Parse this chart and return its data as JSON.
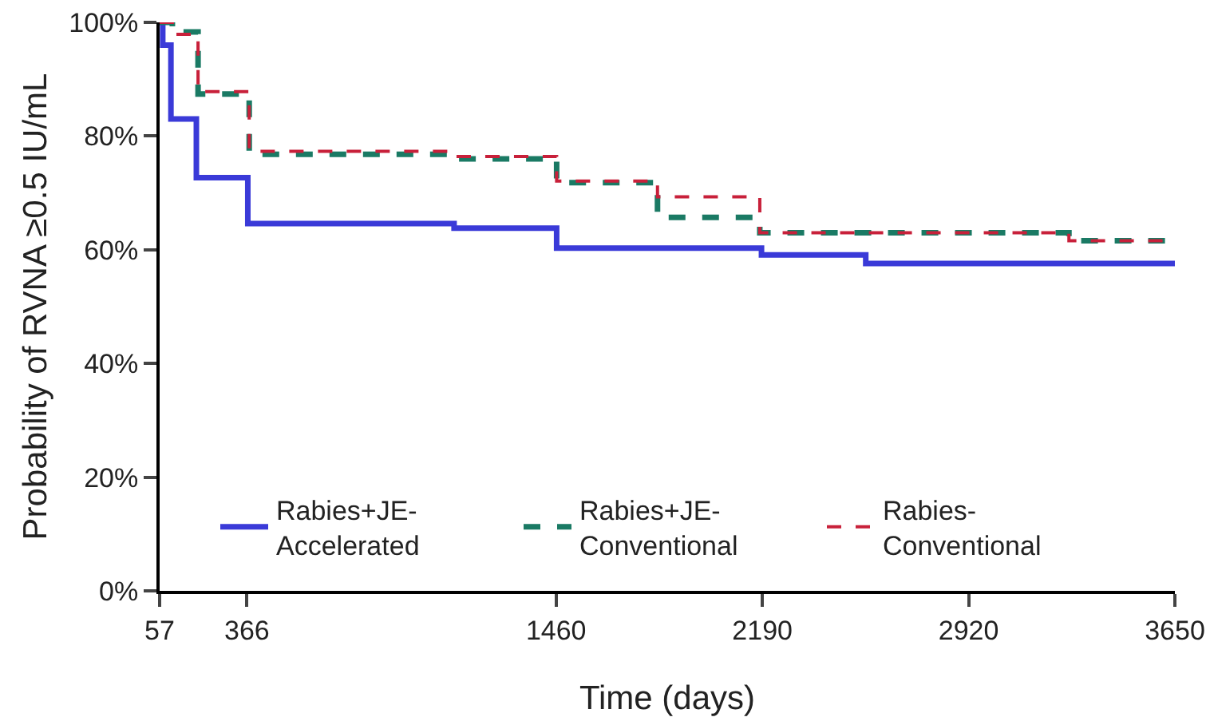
{
  "chart_data": {
    "type": "step",
    "xlabel": "Time (days)",
    "ylabel": "Probability of RVNA ≥0.5 IU/mL",
    "series": [
      {
        "name": "Rabies+JE-\nAccelerated",
        "color": "#3a3ad8",
        "line_style": "solid",
        "x": [
          57,
          68,
          97,
          187,
          369,
          1099,
          1462,
          2187,
          2556,
          3650
        ],
        "values": [
          100,
          96,
          83,
          72.7,
          64.6,
          63.8,
          60.3,
          59.1,
          57.6,
          57.6
        ]
      },
      {
        "name": "Rabies+JE-\nConventional",
        "color": "#1a7a64",
        "line_style": "dashed",
        "x": [
          57,
          102,
          193,
          374,
          1099,
          1462,
          1819,
          2181,
          3275,
          3650
        ],
        "values": [
          100,
          98.3,
          87.4,
          76.8,
          76,
          71.8,
          65.7,
          63,
          61.6,
          61.6
        ]
      },
      {
        "name": "Rabies-\nConventional",
        "color": "#c8203a",
        "line_style": "dashed",
        "x": [
          57,
          108,
          193,
          374,
          1099,
          1462,
          1819,
          2181,
          3275,
          3650
        ],
        "values": [
          100,
          97.9,
          87.8,
          77.3,
          76.4,
          72.1,
          69.3,
          63,
          61.6,
          61.6
        ]
      }
    ],
    "xlim": [
      57,
      3650
    ],
    "xticks": [
      57,
      366,
      1460,
      2190,
      2920,
      3650
    ],
    "ylim": [
      0,
      100
    ],
    "yticks": [
      {
        "value": 0,
        "label": "0%"
      },
      {
        "value": 20,
        "label": "20%"
      },
      {
        "value": 40,
        "label": "40%"
      },
      {
        "value": 60,
        "label": "60%"
      },
      {
        "value": 80,
        "label": "80%"
      },
      {
        "value": 100,
        "label": "100%"
      }
    ],
    "grid": false,
    "legend": "bottom",
    "marker": "none"
  }
}
